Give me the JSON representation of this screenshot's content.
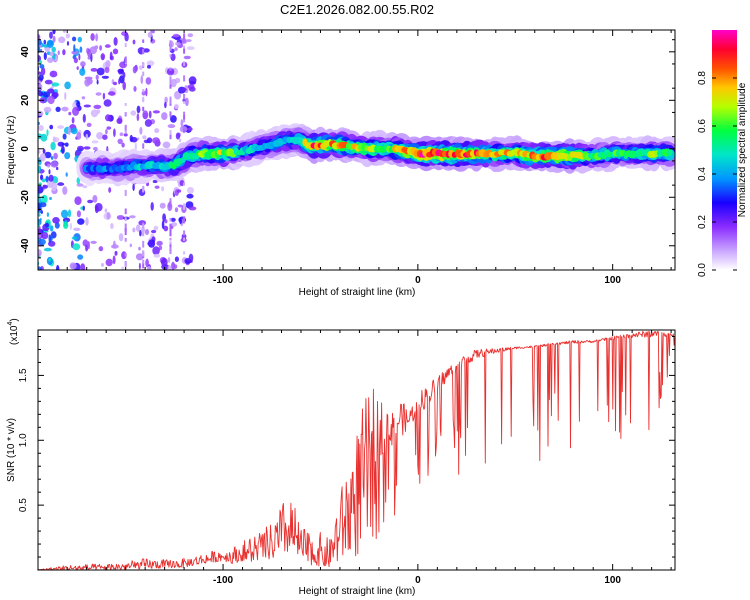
{
  "figure_title": "C2E1.2026.082.00.55.R02",
  "colors": {
    "snr_line": "#e8302e",
    "axis": "#000000"
  },
  "chart_data": [
    {
      "type": "heatmap",
      "title": "C2E1.2026.082.00.55.R02",
      "xlabel": "Height of straight line (km)",
      "ylabel": "Frequency (Hz)",
      "xlim": [
        -195,
        132
      ],
      "ylim": [
        -50,
        49
      ],
      "xticks": [
        -100,
        0,
        100
      ],
      "xtick_labels": [
        "-100",
        "0",
        "100"
      ],
      "yticks": [
        -40,
        -20,
        0,
        20,
        40
      ],
      "ytick_labels": [
        "-40",
        "-20",
        "0",
        "20",
        "40"
      ],
      "colorbar": {
        "label": "Normalized spectral amplitude",
        "range": [
          0,
          1
        ],
        "ticks": [
          0.0,
          0.2,
          0.4,
          0.6,
          0.8
        ],
        "tick_labels": [
          "0.0",
          "0.2",
          "0.4",
          "0.6",
          "0.8"
        ],
        "colormap": [
          "#ffffff",
          "#9b4dff",
          "#3300ff",
          "#00c8ff",
          "#00ff80",
          "#c8ff00",
          "#ff8000",
          "#ff0000",
          "#ff00c0"
        ]
      },
      "ridge": {
        "name": "Doppler frequency ridge (Hz)",
        "x": [
          -170,
          -155,
          -140,
          -125,
          -118,
          -110,
          -100,
          -90,
          -80,
          -70,
          -60,
          -55,
          -45,
          -35,
          -25,
          -15,
          -5,
          0,
          10,
          20,
          30,
          40,
          50,
          60,
          70,
          80,
          90,
          100,
          110,
          120,
          130
        ],
        "y": [
          -8,
          -8,
          -7,
          -7,
          -3,
          -2,
          -2,
          -1,
          1,
          3,
          4,
          1,
          2,
          1,
          0,
          0,
          -1,
          -2,
          -2,
          -2,
          -2,
          -2,
          -2,
          -3,
          -3,
          -3,
          -3,
          -2,
          -2,
          -2,
          -2
        ],
        "amplitude": [
          0.35,
          0.4,
          0.45,
          0.55,
          0.55,
          0.65,
          0.7,
          0.5,
          0.45,
          0.45,
          0.55,
          0.9,
          0.85,
          0.75,
          0.7,
          0.65,
          0.85,
          0.95,
          0.95,
          0.95,
          0.9,
          0.75,
          0.75,
          0.85,
          0.85,
          0.8,
          0.6,
          0.6,
          0.55,
          0.65,
          0.6
        ]
      }
    },
    {
      "type": "line",
      "title": "",
      "xlabel": "Height of straight line (km)",
      "ylabel": "SNR (10 * v/v)",
      "yscale_label": "(x10",
      "yscale_exponent": "4",
      "yscale_suffix": ")",
      "xlim": [
        -195,
        132
      ],
      "ylim": [
        0,
        18500
      ],
      "xticks": [
        -100,
        0,
        100
      ],
      "xtick_labels": [
        "-100",
        "0",
        "100"
      ],
      "yticks": [
        5000,
        10000,
        15000
      ],
      "ytick_labels": [
        "0.5",
        "1.0",
        "1.5"
      ],
      "series": [
        {
          "name": "SNR",
          "color": "#e8302e",
          "x": [
            -195,
            -180,
            -160,
            -150,
            -140,
            -130,
            -120,
            -110,
            -100,
            -95,
            -90,
            -85,
            -80,
            -75,
            -70,
            -65,
            -60,
            -55,
            -50,
            -45,
            -40,
            -35,
            -30,
            -25,
            -20,
            -15,
            -10,
            -5,
            0,
            5,
            10,
            15,
            20,
            30,
            40,
            50,
            60,
            70,
            80,
            90,
            100,
            110,
            120,
            132
          ],
          "y": [
            0,
            100,
            150,
            250,
            400,
            500,
            600,
            900,
            1300,
            1200,
            1600,
            1900,
            2000,
            2400,
            3200,
            3700,
            2500,
            2300,
            1800,
            1400,
            2600,
            4200,
            5500,
            6500,
            7500,
            8400,
            9100,
            10500,
            11500,
            12200,
            13300,
            14300,
            15000,
            16100,
            16600,
            17000,
            17100,
            17300,
            17400,
            17500,
            17700,
            17800,
            17800,
            17900
          ],
          "envelope_max": [
            50,
            400,
            500,
            650,
            900,
            800,
            900,
            1300,
            1700,
            1800,
            2200,
            2900,
            3100,
            3600,
            5200,
            5900,
            3300,
            3000,
            2900,
            2400,
            6000,
            8600,
            11700,
            14300,
            13500,
            12800,
            13700,
            12200,
            13700,
            14300,
            15000,
            15600,
            16300,
            17000,
            17100,
            17200,
            17300,
            17500,
            17700,
            17700,
            18000,
            18300,
            18500,
            18200
          ],
          "envelope_min": [
            0,
            0,
            0,
            50,
            100,
            150,
            200,
            500,
            700,
            500,
            700,
            600,
            900,
            800,
            1200,
            1400,
            900,
            400,
            300,
            200,
            300,
            500,
            1000,
            1500,
            2400,
            3300,
            4100,
            5800,
            6500,
            7200,
            7400,
            8600,
            7200,
            7600,
            7700,
            7900,
            8000,
            8300,
            8300,
            8500,
            9000,
            9400,
            9800,
            17300
          ]
        }
      ]
    }
  ]
}
